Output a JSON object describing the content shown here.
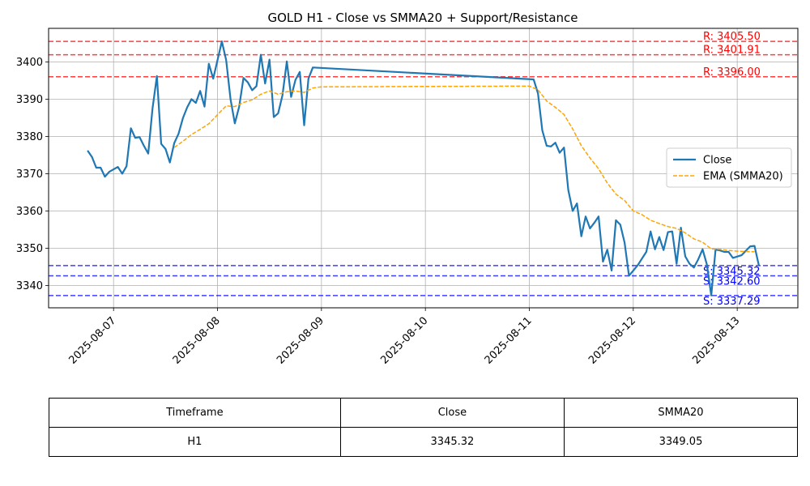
{
  "chart_data": {
    "type": "line",
    "title": "GOLD H1 - Close vs SMMA20 + Support/Resistance",
    "xlabel": "",
    "ylabel": "",
    "x_ticks": [
      "2025-08-07",
      "2025-08-08",
      "2025-08-09",
      "2025-08-10",
      "2025-08-11",
      "2025-08-12",
      "2025-08-13"
    ],
    "xlim": [
      "2025-08-06 09:00",
      "2025-08-13 14:00"
    ],
    "ylim": [
      3334,
      3409
    ],
    "y_ticks": [
      3340,
      3350,
      3360,
      3370,
      3380,
      3390,
      3400
    ],
    "grid": true,
    "legend": "center-right",
    "series": [
      {
        "name": "Close",
        "color": "#1f77b4",
        "style": "solid",
        "points": [
          [
            "2025-08-06 18:00",
            3376.2
          ],
          [
            "2025-08-06 19:00",
            3374.5
          ],
          [
            "2025-08-06 20:00",
            3371.6
          ],
          [
            "2025-08-06 21:00",
            3371.6
          ],
          [
            "2025-08-06 22:00",
            3369.2
          ],
          [
            "2025-08-06 23:00",
            3370.5
          ],
          [
            "2025-08-07 01:00",
            3371.8
          ],
          [
            "2025-08-07 02:00",
            3370.0
          ],
          [
            "2025-08-07 03:00",
            3372.0
          ],
          [
            "2025-08-07 04:00",
            3382.2
          ],
          [
            "2025-08-07 05:00",
            3379.6
          ],
          [
            "2025-08-07 06:00",
            3379.8
          ],
          [
            "2025-08-07 07:00",
            3377.5
          ],
          [
            "2025-08-07 08:00",
            3375.4
          ],
          [
            "2025-08-07 09:00",
            3387.5
          ],
          [
            "2025-08-07 10:00",
            3396.2
          ],
          [
            "2025-08-07 11:00",
            3378.0
          ],
          [
            "2025-08-07 12:00",
            3376.6
          ],
          [
            "2025-08-07 13:00",
            3373.0
          ],
          [
            "2025-08-07 14:00",
            3378.2
          ],
          [
            "2025-08-07 15:00",
            3380.7
          ],
          [
            "2025-08-07 16:00",
            3384.9
          ],
          [
            "2025-08-07 17:00",
            3387.8
          ],
          [
            "2025-08-07 18:00",
            3390.0
          ],
          [
            "2025-08-07 19:00",
            3389.0
          ],
          [
            "2025-08-07 20:00",
            3392.2
          ],
          [
            "2025-08-07 21:00",
            3388.0
          ],
          [
            "2025-08-07 22:00",
            3399.5
          ],
          [
            "2025-08-07 23:00",
            3395.5
          ],
          [
            "2025-08-08 01:00",
            3405.5
          ],
          [
            "2025-08-08 02:00",
            3400.5
          ],
          [
            "2025-08-08 03:00",
            3390.0
          ],
          [
            "2025-08-08 04:00",
            3383.5
          ],
          [
            "2025-08-08 05:00",
            3388.0
          ],
          [
            "2025-08-08 06:00",
            3395.7
          ],
          [
            "2025-08-08 07:00",
            3394.5
          ],
          [
            "2025-08-08 08:00",
            3392.4
          ],
          [
            "2025-08-08 09:00",
            3393.5
          ],
          [
            "2025-08-08 10:00",
            3401.9
          ],
          [
            "2025-08-08 11:00",
            3394.2
          ],
          [
            "2025-08-08 12:00",
            3400.6
          ],
          [
            "2025-08-08 13:00",
            3385.2
          ],
          [
            "2025-08-08 14:00",
            3386.2
          ],
          [
            "2025-08-08 15:00",
            3391.0
          ],
          [
            "2025-08-08 16:00",
            3400.1
          ],
          [
            "2025-08-08 17:00",
            3390.6
          ],
          [
            "2025-08-08 18:00",
            3395.2
          ],
          [
            "2025-08-08 19:00",
            3397.3
          ],
          [
            "2025-08-08 20:00",
            3383.0
          ],
          [
            "2025-08-08 21:00",
            3395.5
          ],
          [
            "2025-08-08 22:00",
            3398.5
          ],
          [
            "2025-08-11 01:00",
            3395.3
          ],
          [
            "2025-08-11 02:00",
            3391.5
          ],
          [
            "2025-08-11 03:00",
            3381.6
          ],
          [
            "2025-08-11 04:00",
            3377.5
          ],
          [
            "2025-08-11 05:00",
            3377.3
          ],
          [
            "2025-08-11 06:00",
            3378.3
          ],
          [
            "2025-08-11 07:00",
            3375.6
          ],
          [
            "2025-08-11 08:00",
            3377.0
          ],
          [
            "2025-08-11 09:00",
            3365.6
          ],
          [
            "2025-08-11 10:00",
            3360.0
          ],
          [
            "2025-08-11 11:00",
            3362.0
          ],
          [
            "2025-08-11 12:00",
            3353.2
          ],
          [
            "2025-08-11 13:00",
            3358.5
          ],
          [
            "2025-08-11 14:00",
            3355.3
          ],
          [
            "2025-08-11 15:00",
            3356.8
          ],
          [
            "2025-08-11 16:00",
            3358.5
          ],
          [
            "2025-08-11 17:00",
            3346.4
          ],
          [
            "2025-08-11 18:00",
            3349.6
          ],
          [
            "2025-08-11 19:00",
            3344.0
          ],
          [
            "2025-08-11 20:00",
            3357.5
          ],
          [
            "2025-08-11 21:00",
            3356.3
          ],
          [
            "2025-08-11 22:00",
            3351.5
          ],
          [
            "2025-08-11 23:00",
            3342.6
          ],
          [
            "2025-08-12 01:00",
            3345.4
          ],
          [
            "2025-08-12 02:00",
            3347.2
          ],
          [
            "2025-08-12 03:00",
            3349.0
          ],
          [
            "2025-08-12 04:00",
            3354.5
          ],
          [
            "2025-08-12 05:00",
            3349.7
          ],
          [
            "2025-08-12 06:00",
            3353.0
          ],
          [
            "2025-08-12 07:00",
            3349.5
          ],
          [
            "2025-08-12 08:00",
            3354.3
          ],
          [
            "2025-08-12 09:00",
            3354.5
          ],
          [
            "2025-08-12 10:00",
            3345.8
          ],
          [
            "2025-08-12 11:00",
            3355.5
          ],
          [
            "2025-08-12 12:00",
            3347.8
          ],
          [
            "2025-08-12 13:00",
            3345.8
          ],
          [
            "2025-08-12 14:00",
            3344.8
          ],
          [
            "2025-08-12 15:00",
            3347.0
          ],
          [
            "2025-08-12 16:00",
            3349.7
          ],
          [
            "2025-08-12 17:00",
            3345.6
          ],
          [
            "2025-08-12 18:00",
            3337.3
          ],
          [
            "2025-08-12 19:00",
            3349.6
          ],
          [
            "2025-08-12 20:00",
            3349.4
          ],
          [
            "2025-08-12 21:00",
            3349.0
          ],
          [
            "2025-08-12 22:00",
            3349.0
          ],
          [
            "2025-08-12 23:00",
            3347.4
          ],
          [
            "2025-08-13 01:00",
            3348.1
          ],
          [
            "2025-08-13 02:00",
            3349.3
          ],
          [
            "2025-08-13 03:00",
            3350.5
          ],
          [
            "2025-08-13 04:00",
            3350.6
          ],
          [
            "2025-08-13 05:00",
            3345.32
          ]
        ]
      },
      {
        "name": "EMA (SMMA20)",
        "color": "#ffa500",
        "style": "dashed",
        "points": [
          [
            "2025-08-07 14:00",
            3377.0
          ],
          [
            "2025-08-07 16:00",
            3378.7
          ],
          [
            "2025-08-07 18:00",
            3380.5
          ],
          [
            "2025-08-07 20:00",
            3381.9
          ],
          [
            "2025-08-07 22:00",
            3383.4
          ],
          [
            "2025-08-08 00:00",
            3385.8
          ],
          [
            "2025-08-08 02:00",
            3388.2
          ],
          [
            "2025-08-08 04:00",
            3388.0
          ],
          [
            "2025-08-08 06:00",
            3389.1
          ],
          [
            "2025-08-08 08:00",
            3389.8
          ],
          [
            "2025-08-08 10:00",
            3391.3
          ],
          [
            "2025-08-08 12:00",
            3392.2
          ],
          [
            "2025-08-08 14:00",
            3391.3
          ],
          [
            "2025-08-08 16:00",
            3392.0
          ],
          [
            "2025-08-08 18:00",
            3392.2
          ],
          [
            "2025-08-08 20:00",
            3391.8
          ],
          [
            "2025-08-08 22:00",
            3393.0
          ],
          [
            "2025-08-09 00:00",
            3393.3
          ],
          [
            "2025-08-11 00:00",
            3393.5
          ],
          [
            "2025-08-11 02:00",
            3392.5
          ],
          [
            "2025-08-11 04:00",
            3389.5
          ],
          [
            "2025-08-11 06:00",
            3387.8
          ],
          [
            "2025-08-11 08:00",
            3385.9
          ],
          [
            "2025-08-11 10:00",
            3382.0
          ],
          [
            "2025-08-11 12:00",
            3377.5
          ],
          [
            "2025-08-11 14:00",
            3374.2
          ],
          [
            "2025-08-11 16:00",
            3371.3
          ],
          [
            "2025-08-11 18:00",
            3367.5
          ],
          [
            "2025-08-11 20:00",
            3364.5
          ],
          [
            "2025-08-11 22:00",
            3362.8
          ],
          [
            "2025-08-12 00:00",
            3360.0
          ],
          [
            "2025-08-12 02:00",
            3359.0
          ],
          [
            "2025-08-12 04:00",
            3357.5
          ],
          [
            "2025-08-12 06:00",
            3356.6
          ],
          [
            "2025-08-12 08:00",
            3355.8
          ],
          [
            "2025-08-12 10:00",
            3355.3
          ],
          [
            "2025-08-12 12:00",
            3354.1
          ],
          [
            "2025-08-12 14:00",
            3352.5
          ],
          [
            "2025-08-12 16:00",
            3351.6
          ],
          [
            "2025-08-12 18:00",
            3349.8
          ],
          [
            "2025-08-12 20:00",
            3349.7
          ],
          [
            "2025-08-12 22:00",
            3349.4
          ],
          [
            "2025-08-13 00:00",
            3349.2
          ],
          [
            "2025-08-13 02:00",
            3349.1
          ],
          [
            "2025-08-13 04:00",
            3349.05
          ]
        ]
      }
    ],
    "resistance_lines": [
      {
        "value": 3405.5,
        "label": "R: 3405.50",
        "color": "#ff0000"
      },
      {
        "value": 3401.91,
        "label": "R: 3401.91",
        "color": "#ff0000"
      },
      {
        "value": 3396.0,
        "label": "R: 3396.00",
        "color": "#ff0000"
      }
    ],
    "support_lines": [
      {
        "value": 3345.32,
        "label": "S: 3345.32",
        "color": "#0000ff"
      },
      {
        "value": 3342.6,
        "label": "S: 3342.60",
        "color": "#0000ff"
      },
      {
        "value": 3337.29,
        "label": "S: 3337.29",
        "color": "#0000ff"
      }
    ]
  },
  "table": {
    "headers": [
      "Timeframe",
      "Close",
      "SMMA20"
    ],
    "row": [
      "H1",
      "3345.32",
      "3349.05"
    ]
  }
}
